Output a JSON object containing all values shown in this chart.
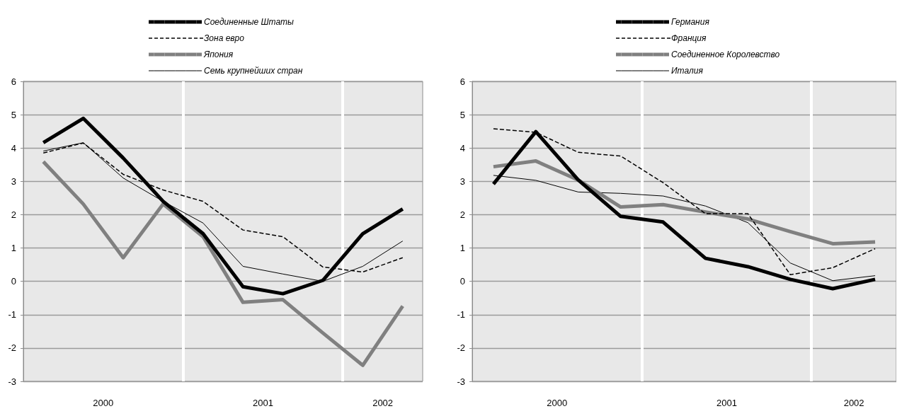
{
  "chart_data": [
    {
      "type": "line",
      "x": [
        2000.125,
        2000.375,
        2000.625,
        2000.875,
        2001.125,
        2001.375,
        2001.625,
        2001.875,
        2002.125,
        2002.375
      ],
      "xlim": [
        2000,
        2002.5
      ],
      "xticks": [
        {
          "value": 2000.5,
          "label": "2000"
        },
        {
          "value": 2001.5,
          "label": "2001"
        },
        {
          "value": 2002.25,
          "label": "2002"
        }
      ],
      "ylim": [
        -3,
        6
      ],
      "yticks": [
        -3,
        -2,
        -1,
        0,
        1,
        2,
        3,
        4,
        5,
        6
      ],
      "grid": "y",
      "legend": "top",
      "marker": "none",
      "ref_lines": [
        {
          "axis": "x",
          "value": 2001,
          "color": "#ffffff"
        },
        {
          "axis": "x",
          "value": 2002,
          "color": "#ffffff"
        }
      ],
      "series": [
        {
          "name": "Соединенные Штаты",
          "color": "#000000",
          "line_style": "solid",
          "values": [
            4.16,
            4.89,
            3.7,
            2.4,
            1.43,
            -0.16,
            -0.37,
            0.03,
            1.43,
            2.17
          ]
        },
        {
          "name": "Зона евро",
          "color": "#000000",
          "line_style": "dashed",
          "values": [
            3.85,
            4.15,
            3.21,
            2.74,
            2.4,
            1.54,
            1.34,
            0.43,
            0.28,
            0.71
          ]
        },
        {
          "name": "Япония",
          "color": "#808080",
          "line_style": "solid",
          "values": [
            3.59,
            2.32,
            0.71,
            2.32,
            1.34,
            -0.63,
            -0.55,
            -1.55,
            -2.52,
            -0.74
          ]
        },
        {
          "name": "Семь крупнейших стран",
          "color": "#000000",
          "line_style": "solid",
          "values": [
            3.91,
            4.16,
            3.1,
            2.4,
            1.75,
            0.45,
            0.22,
            0.0,
            0.45,
            1.21
          ]
        }
      ]
    },
    {
      "type": "line",
      "x": [
        2000.125,
        2000.375,
        2000.625,
        2000.875,
        2001.125,
        2001.375,
        2001.625,
        2001.875,
        2002.125,
        2002.375
      ],
      "xlim": [
        2000,
        2002.5
      ],
      "xticks": [
        {
          "value": 2000.5,
          "label": "2000"
        },
        {
          "value": 2001.5,
          "label": "2001"
        },
        {
          "value": 2002.25,
          "label": "2002"
        }
      ],
      "ylim": [
        -3,
        6
      ],
      "yticks": [
        -3,
        -2,
        -1,
        0,
        1,
        2,
        3,
        4,
        5,
        6
      ],
      "grid": "y",
      "legend": "top",
      "marker": "none",
      "ref_lines": [
        {
          "axis": "x",
          "value": 2001,
          "color": "#ffffff"
        },
        {
          "axis": "x",
          "value": 2002,
          "color": "#ffffff"
        }
      ],
      "series": [
        {
          "name": "Германия",
          "color": "#000000",
          "line_style": "solid",
          "values": [
            2.92,
            4.49,
            3.04,
            1.95,
            1.78,
            0.69,
            0.44,
            0.06,
            -0.22,
            0.06
          ]
        },
        {
          "name": "Франция",
          "color": "#000000",
          "line_style": "dashed",
          "values": [
            4.58,
            4.47,
            3.87,
            3.76,
            2.96,
            2.03,
            2.03,
            0.2,
            0.41,
            0.98
          ]
        },
        {
          "name": "Соединенное Королевство",
          "color": "#808080",
          "line_style": "solid",
          "values": [
            3.44,
            3.61,
            3.04,
            2.23,
            2.3,
            2.08,
            1.87,
            1.49,
            1.13,
            1.18
          ]
        },
        {
          "name": "Италия",
          "color": "#000000",
          "line_style": "solid",
          "values": [
            3.18,
            3.03,
            2.68,
            2.64,
            2.56,
            2.26,
            1.76,
            0.55,
            0.02,
            0.17
          ]
        }
      ]
    }
  ]
}
